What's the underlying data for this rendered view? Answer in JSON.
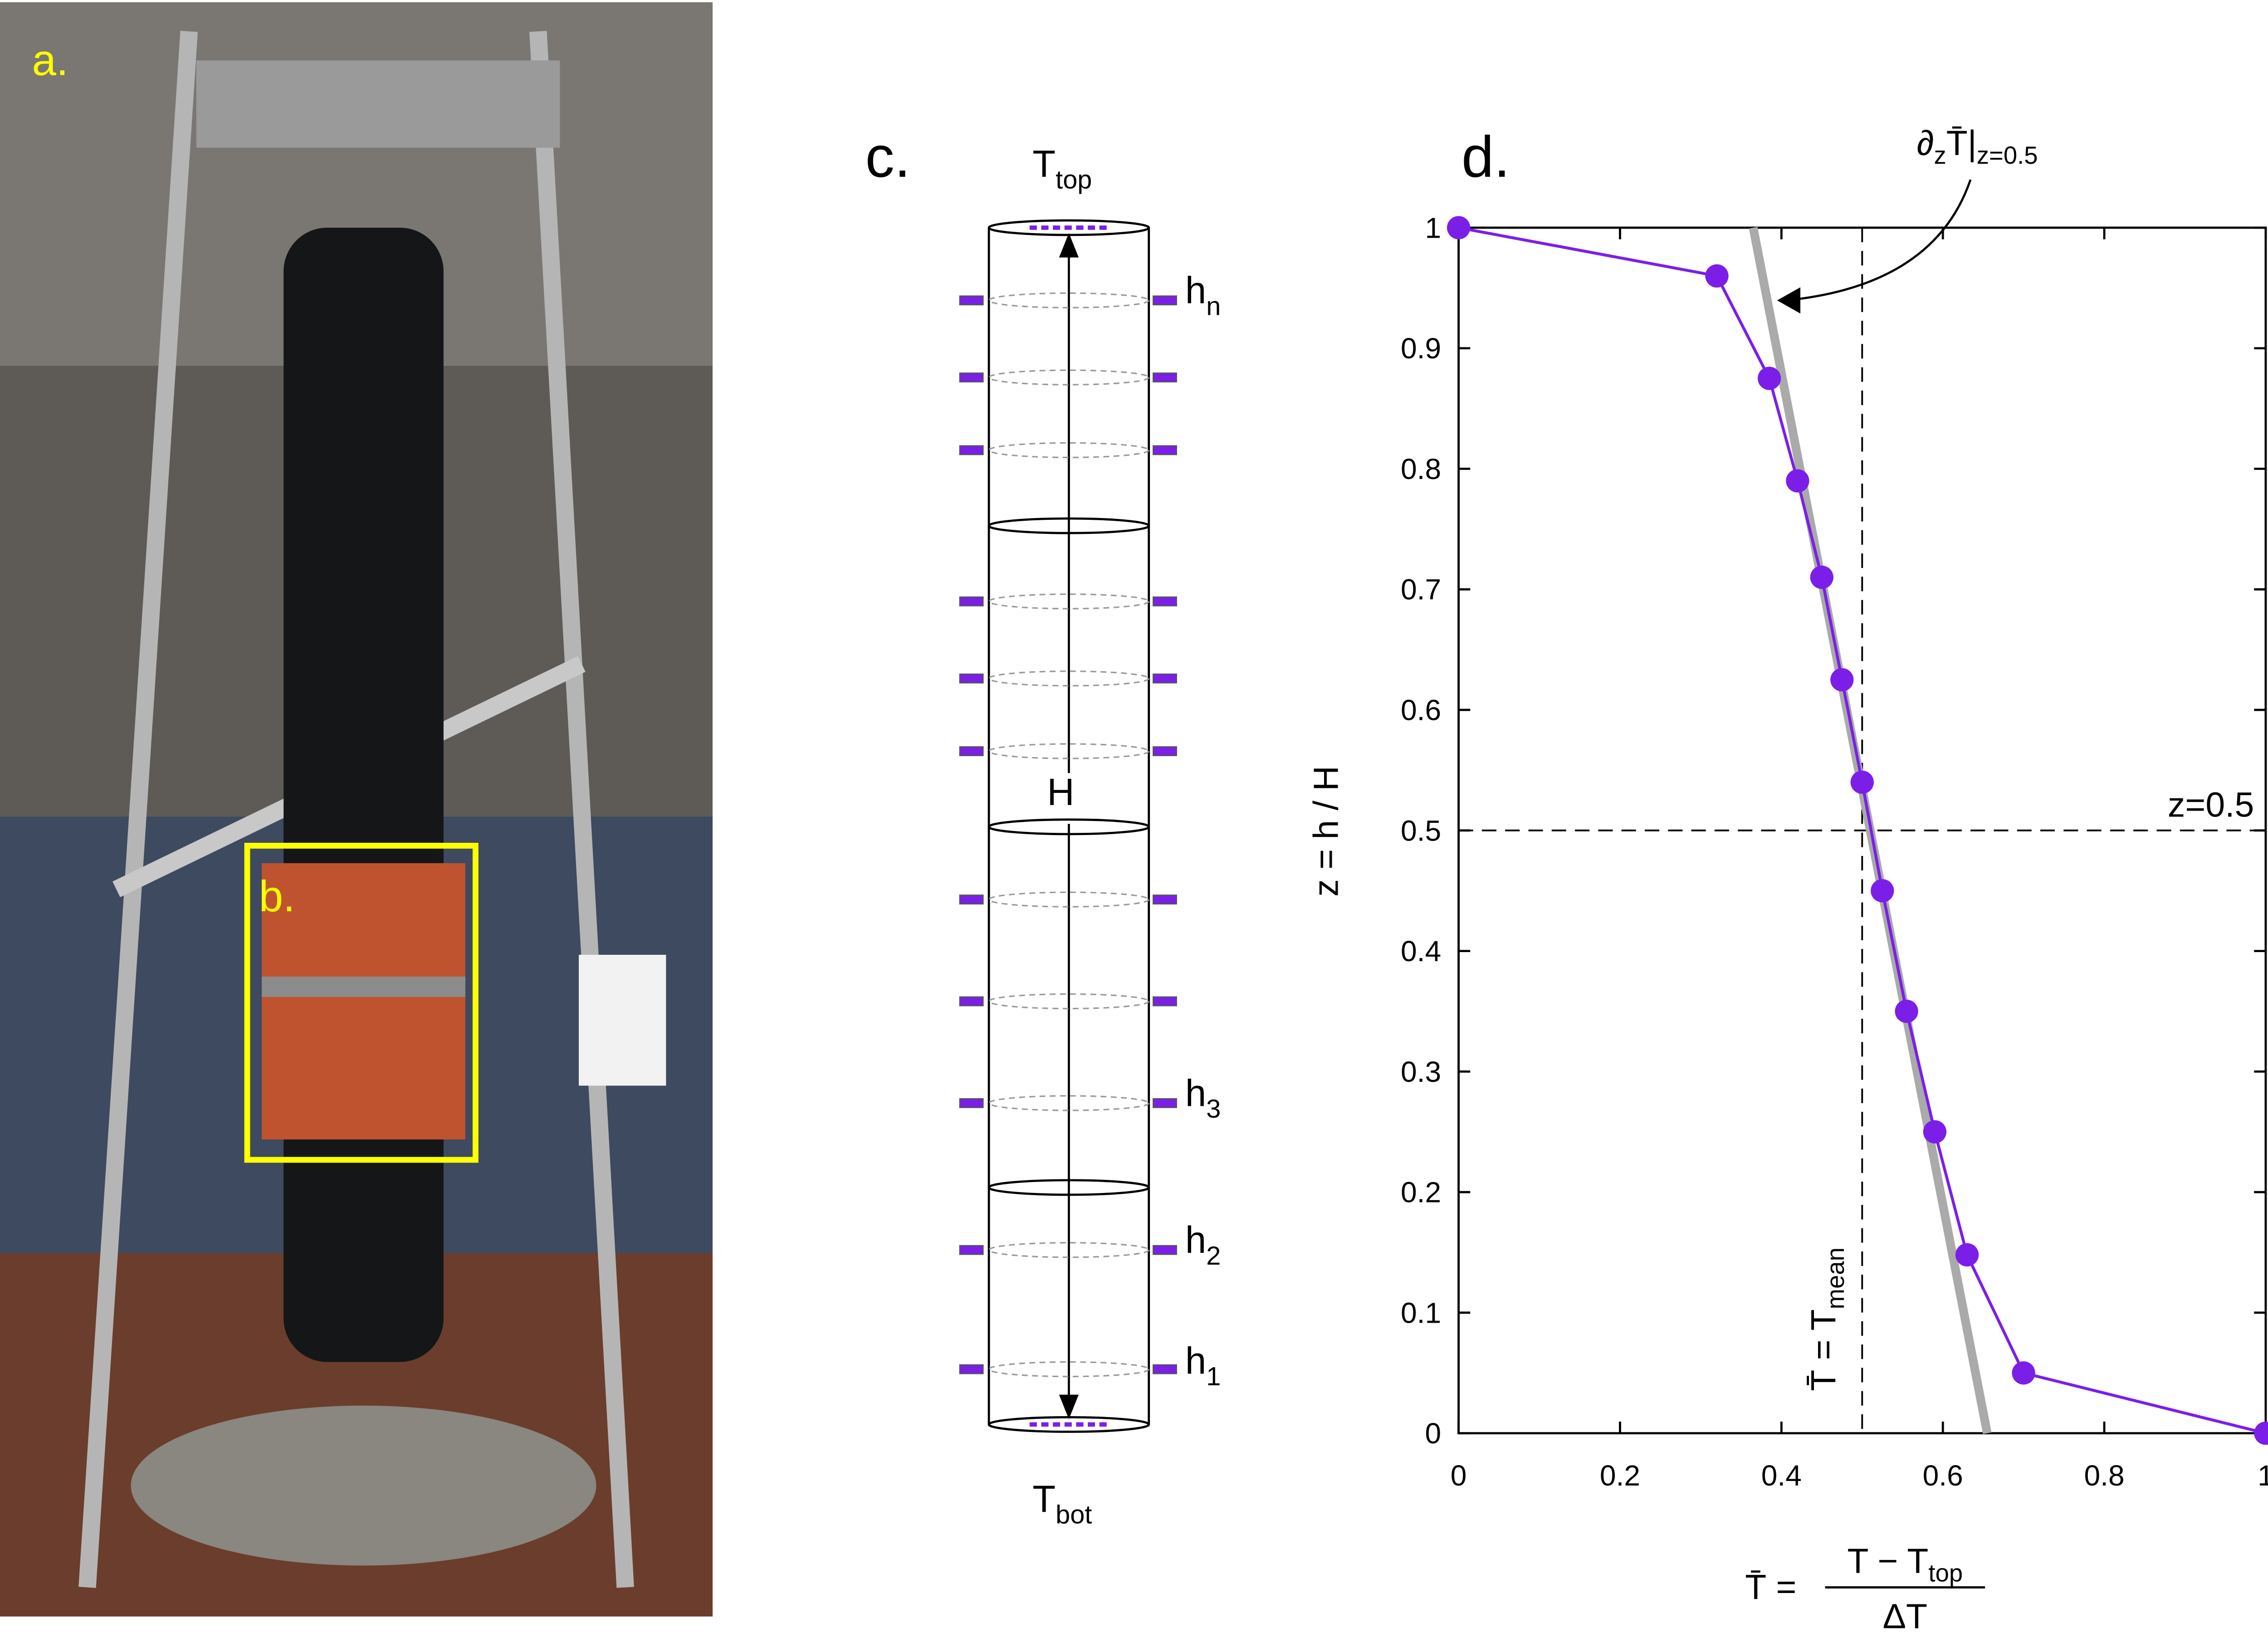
{
  "panels": {
    "a": "a.",
    "b": "b.",
    "c": "c.",
    "d": "d."
  },
  "diagram": {
    "top": {
      "text": "T",
      "sub": "top"
    },
    "bottom": {
      "text": "T",
      "sub": "bot"
    },
    "height": "H",
    "sensors": [
      {
        "text": "h",
        "sub": "n"
      },
      {
        "text": "h",
        "sub": "3"
      },
      {
        "text": "h",
        "sub": "2"
      },
      {
        "text": "h",
        "sub": "1"
      }
    ]
  },
  "chart_data": {
    "type": "line",
    "y_label": "z = h / H",
    "x_label": {
      "lhs": "T̄ =",
      "numerator": {
        "text": "T − T",
        "sub": "top"
      },
      "denominator": "ΔT"
    },
    "slope_label": {
      "text": "∂",
      "sub1": "z",
      "main": "T̄|",
      "sub2": "z=0.5"
    },
    "hline_label": "z=0.5",
    "vline_label": {
      "text": "T̄ = T",
      "sub": "mean"
    },
    "hline": 0.5,
    "vline": 0.5,
    "xlim": [
      0,
      1
    ],
    "ylim": [
      0,
      1
    ],
    "xticks": [
      0,
      0.2,
      0.4,
      0.6,
      0.8,
      1
    ],
    "yticks": [
      0,
      0.1,
      0.2,
      0.3,
      0.4,
      0.5,
      0.6,
      0.7,
      0.8,
      0.9,
      1
    ],
    "series": [
      {
        "color": "#7b1fe8",
        "x": [
          0,
          0.32,
          0.385,
          0.42,
          0.45,
          0.475,
          0.5,
          0.525,
          0.555,
          0.59,
          0.63,
          0.7,
          1
        ],
        "values": [
          1,
          0.96,
          0.875,
          0.79,
          0.71,
          0.625,
          0.54,
          0.45,
          0.35,
          0.25,
          0.148,
          0.05,
          0
        ]
      },
      {
        "color": "#aaaaaa",
        "x": [
          0.365,
          0.655
        ],
        "values": [
          1,
          0
        ]
      }
    ]
  }
}
